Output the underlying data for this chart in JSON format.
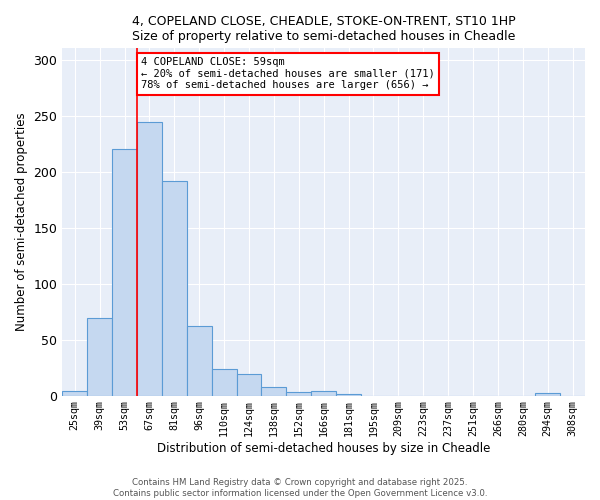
{
  "title1": "4, COPELAND CLOSE, CHEADLE, STOKE-ON-TRENT, ST10 1HP",
  "title2": "Size of property relative to semi-detached houses in Cheadle",
  "xlabel": "Distribution of semi-detached houses by size in Cheadle",
  "ylabel": "Number of semi-detached properties",
  "categories": [
    "25sqm",
    "39sqm",
    "53sqm",
    "67sqm",
    "81sqm",
    "96sqm",
    "110sqm",
    "124sqm",
    "138sqm",
    "152sqm",
    "166sqm",
    "181sqm",
    "195sqm",
    "209sqm",
    "223sqm",
    "237sqm",
    "251sqm",
    "266sqm",
    "280sqm",
    "294sqm",
    "308sqm"
  ],
  "values": [
    4,
    69,
    220,
    244,
    192,
    62,
    24,
    19,
    8,
    3,
    4,
    1,
    0,
    0,
    0,
    0,
    0,
    0,
    0,
    2,
    0
  ],
  "bar_color": "#c5d8f0",
  "bar_edge_color": "#5b9bd5",
  "annotation_title": "4 COPELAND CLOSE: 59sqm",
  "annotation_line1": "← 20% of semi-detached houses are smaller (171)",
  "annotation_line2": "78% of semi-detached houses are larger (656) →",
  "annotation_box_color": "white",
  "annotation_box_edge": "red",
  "footer1": "Contains HM Land Registry data © Crown copyright and database right 2025.",
  "footer2": "Contains public sector information licensed under the Open Government Licence v3.0.",
  "background_color": "#e8eef8",
  "ylim": [
    0,
    310
  ],
  "yticks": [
    0,
    50,
    100,
    150,
    200,
    250,
    300
  ],
  "red_line_index": 2.5
}
